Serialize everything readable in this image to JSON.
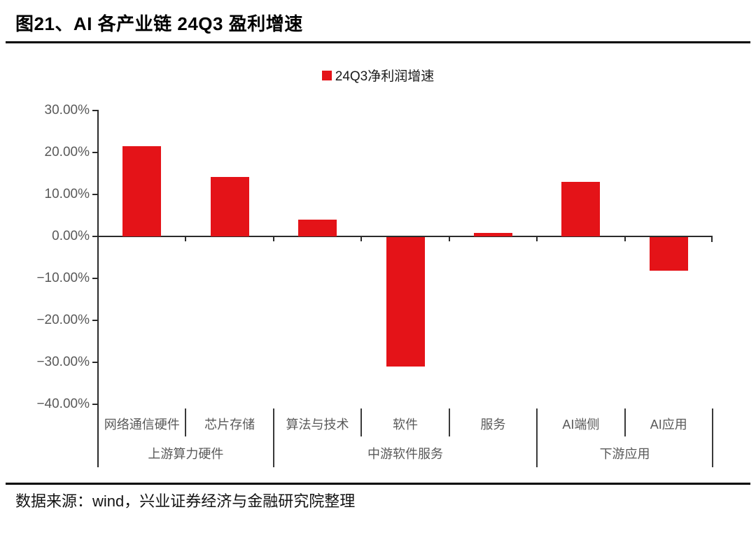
{
  "figure": {
    "title": "图21、AI 各产业链 24Q3 盈利增速"
  },
  "chart_data": {
    "type": "bar",
    "title": "图21、AI 各产业链 24Q3 盈利增速",
    "legend_label": "24Q3净利润增速",
    "legend_position": "top-center",
    "categories": [
      "网络通信硬件",
      "芯片存储",
      "算法与技术",
      "软件",
      "服务",
      "AI端侧",
      "AI应用"
    ],
    "values": [
      21.5,
      14.1,
      4.0,
      -30.8,
      0.8,
      13.0,
      -8.0
    ],
    "value_unit": "%",
    "groups": [
      {
        "label": "上游算力硬件",
        "span": [
          0,
          1
        ]
      },
      {
        "label": "中游软件服务",
        "span": [
          2,
          4
        ]
      },
      {
        "label": "下游应用",
        "span": [
          5,
          6
        ]
      }
    ],
    "ylim": [
      -40,
      30
    ],
    "ytick_values": [
      30,
      20,
      10,
      0,
      -10,
      -20,
      -30,
      -40
    ],
    "ytick_labels": [
      "30.00%",
      "20.00%",
      "10.00%",
      "0.00%",
      "−10.00%",
      "−20.00%",
      "−30.00%",
      "−40.00%"
    ],
    "grid": false,
    "bar_color": "#e41318",
    "axis_color": "#2b2b2b",
    "label_color": "#595959"
  },
  "source": {
    "note": "数据来源：wind，兴业证券经济与金融研究院整理"
  }
}
